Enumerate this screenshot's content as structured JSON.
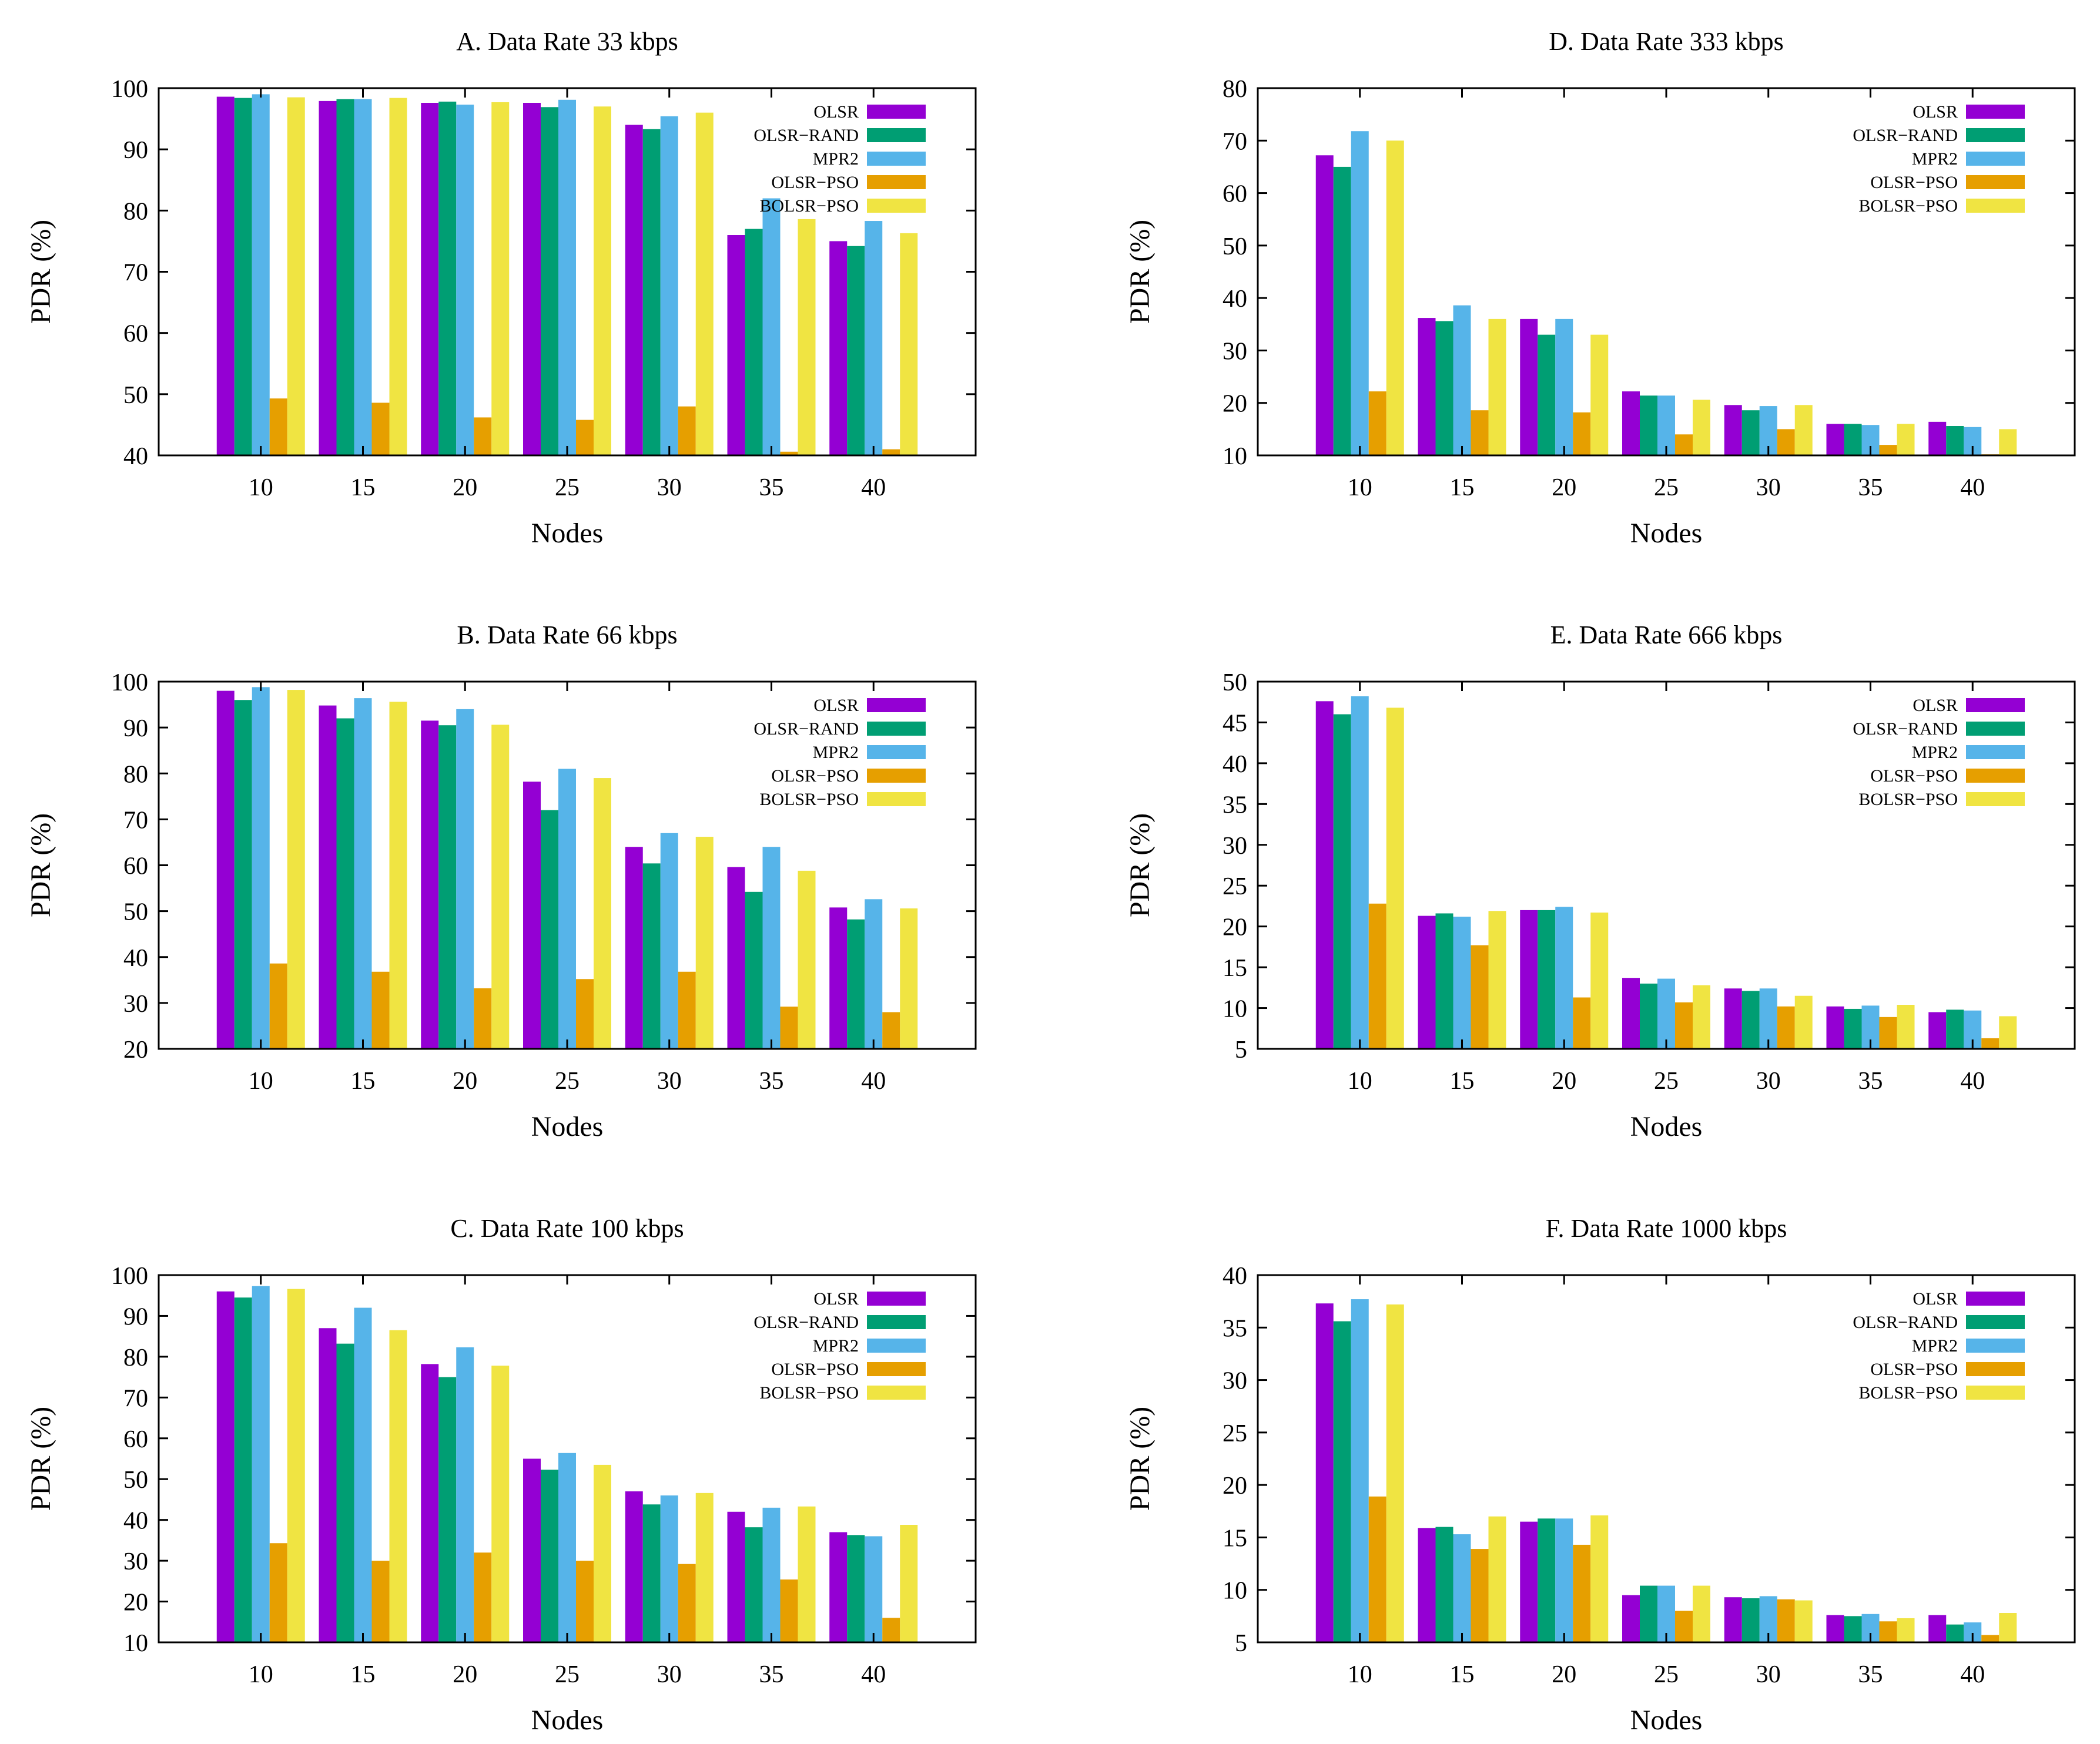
{
  "colors": {
    "OLSR": "#9400D3",
    "OLSR-RAND": "#009E73",
    "MPR2": "#56B4E9",
    "OLSR-PSO": "#E69F00",
    "BOLSR-PSO": "#F0E442"
  },
  "chart_data": [
    {
      "type": "bar",
      "title": "A. Data Rate 33 kbps",
      "xlabel": "Nodes",
      "ylabel": "PDR (%)",
      "ylim": [
        40,
        100
      ],
      "yticks": [
        40,
        50,
        60,
        70,
        80,
        90,
        100
      ],
      "categories": [
        "10",
        "15",
        "20",
        "25",
        "30",
        "35",
        "40"
      ],
      "legend": "top-right",
      "grid": false,
      "series": [
        {
          "name": "OLSR",
          "values": [
            98.6,
            97.9,
            97.6,
            97.6,
            94.0,
            76.0,
            75.0
          ]
        },
        {
          "name": "OLSR−RAND",
          "values": [
            98.4,
            98.2,
            97.8,
            96.9,
            93.3,
            77.0,
            74.2
          ]
        },
        {
          "name": "MPR2",
          "values": [
            99.0,
            98.2,
            97.3,
            98.1,
            95.4,
            82.0,
            78.3
          ]
        },
        {
          "name": "OLSR−PSO",
          "values": [
            49.3,
            48.6,
            46.2,
            45.8,
            48.0,
            40.6,
            41.0
          ]
        },
        {
          "name": "BOLSR−PSO",
          "values": [
            98.5,
            98.4,
            97.7,
            97.0,
            96.0,
            78.6,
            76.3
          ]
        }
      ]
    },
    {
      "type": "bar",
      "title": "D. Data Rate 333 kbps",
      "xlabel": "Nodes",
      "ylabel": "PDR (%)",
      "ylim": [
        10,
        80
      ],
      "yticks": [
        10,
        20,
        30,
        40,
        50,
        60,
        70,
        80
      ],
      "categories": [
        "10",
        "15",
        "20",
        "25",
        "30",
        "35",
        "40"
      ],
      "legend": "top-right",
      "grid": false,
      "series": [
        {
          "name": "OLSR",
          "values": [
            67.2,
            36.2,
            36.0,
            22.2,
            19.6,
            16.0,
            16.4
          ]
        },
        {
          "name": "OLSR−RAND",
          "values": [
            65.0,
            35.6,
            33.0,
            21.4,
            18.6,
            16.0,
            15.6
          ]
        },
        {
          "name": "MPR2",
          "values": [
            71.8,
            38.6,
            36.0,
            21.4,
            19.4,
            15.8,
            15.4
          ]
        },
        {
          "name": "OLSR−PSO",
          "values": [
            22.2,
            18.6,
            18.2,
            14.0,
            15.0,
            12.0,
            10.2
          ]
        },
        {
          "name": "BOLSR−PSO",
          "values": [
            70.0,
            36.0,
            33.0,
            20.6,
            19.6,
            16.0,
            15.0
          ]
        }
      ]
    },
    {
      "type": "bar",
      "title": "B. Data Rate 66 kbps",
      "xlabel": "Nodes",
      "ylabel": "PDR (%)",
      "ylim": [
        20,
        100
      ],
      "yticks": [
        20,
        30,
        40,
        50,
        60,
        70,
        80,
        90,
        100
      ],
      "categories": [
        "10",
        "15",
        "20",
        "25",
        "30",
        "35",
        "40"
      ],
      "legend": "top-right",
      "grid": false,
      "series": [
        {
          "name": "OLSR",
          "values": [
            98.0,
            94.8,
            91.5,
            78.2,
            64.0,
            59.6,
            50.8
          ]
        },
        {
          "name": "OLSR−RAND",
          "values": [
            96.0,
            92.0,
            90.5,
            72.0,
            60.4,
            54.2,
            48.2
          ]
        },
        {
          "name": "MPR2",
          "values": [
            98.8,
            96.4,
            94.0,
            81.0,
            67.0,
            64.0,
            52.6
          ]
        },
        {
          "name": "OLSR−PSO",
          "values": [
            38.6,
            36.8,
            33.2,
            35.2,
            36.8,
            29.2,
            28.0
          ]
        },
        {
          "name": "BOLSR−PSO",
          "values": [
            98.2,
            95.6,
            90.6,
            79.0,
            66.2,
            58.8,
            50.6
          ]
        }
      ]
    },
    {
      "type": "bar",
      "title": "E. Data Rate 666 kbps",
      "xlabel": "Nodes",
      "ylabel": "PDR (%)",
      "ylim": [
        5,
        50
      ],
      "yticks": [
        5,
        10,
        15,
        20,
        25,
        30,
        35,
        40,
        45,
        50
      ],
      "categories": [
        "10",
        "15",
        "20",
        "25",
        "30",
        "35",
        "40"
      ],
      "legend": "top-right",
      "grid": false,
      "series": [
        {
          "name": "OLSR",
          "values": [
            47.6,
            21.3,
            22.0,
            13.7,
            12.4,
            10.2,
            9.5
          ]
        },
        {
          "name": "OLSR−RAND",
          "values": [
            46.0,
            21.6,
            22.0,
            13.0,
            12.1,
            9.9,
            9.8
          ]
        },
        {
          "name": "MPR2",
          "values": [
            48.2,
            21.2,
            22.4,
            13.6,
            12.4,
            10.3,
            9.7
          ]
        },
        {
          "name": "OLSR−PSO",
          "values": [
            22.8,
            17.7,
            11.3,
            10.7,
            10.2,
            8.9,
            6.3
          ]
        },
        {
          "name": "BOLSR−PSO",
          "values": [
            46.8,
            21.9,
            21.7,
            12.8,
            11.5,
            10.4,
            9.0
          ]
        }
      ]
    },
    {
      "type": "bar",
      "title": "C. Data Rate 100 kbps",
      "xlabel": "Nodes",
      "ylabel": "PDR (%)",
      "ylim": [
        10,
        100
      ],
      "yticks": [
        10,
        20,
        30,
        40,
        50,
        60,
        70,
        80,
        90,
        100
      ],
      "categories": [
        "10",
        "15",
        "20",
        "25",
        "30",
        "35",
        "40"
      ],
      "legend": "top-right",
      "grid": false,
      "series": [
        {
          "name": "OLSR",
          "values": [
            96.0,
            87.0,
            78.2,
            55.0,
            47.0,
            42.0,
            37.0
          ]
        },
        {
          "name": "OLSR−RAND",
          "values": [
            94.5,
            83.2,
            75.0,
            52.3,
            43.8,
            38.2,
            36.3
          ]
        },
        {
          "name": "MPR2",
          "values": [
            97.3,
            92.0,
            82.3,
            56.4,
            46.0,
            43.0,
            36.0
          ]
        },
        {
          "name": "OLSR−PSO",
          "values": [
            34.3,
            30.0,
            32.0,
            30.0,
            29.2,
            25.4,
            16.0
          ]
        },
        {
          "name": "BOLSR−PSO",
          "values": [
            96.6,
            86.5,
            77.8,
            53.5,
            46.6,
            43.3,
            38.8
          ]
        }
      ]
    },
    {
      "type": "bar",
      "title": "F. Data Rate 1000 kbps",
      "xlabel": "Nodes",
      "ylabel": "PDR (%)",
      "ylim": [
        5,
        40
      ],
      "yticks": [
        5,
        10,
        15,
        20,
        25,
        30,
        35,
        40
      ],
      "categories": [
        "10",
        "15",
        "20",
        "25",
        "30",
        "35",
        "40"
      ],
      "legend": "top-right",
      "grid": false,
      "series": [
        {
          "name": "OLSR",
          "values": [
            37.3,
            15.9,
            16.5,
            9.5,
            9.3,
            7.6,
            7.6
          ]
        },
        {
          "name": "OLSR−RAND",
          "values": [
            35.6,
            16.0,
            16.8,
            10.4,
            9.2,
            7.5,
            6.7
          ]
        },
        {
          "name": "MPR2",
          "values": [
            37.7,
            15.3,
            16.8,
            10.4,
            9.4,
            7.7,
            6.9
          ]
        },
        {
          "name": "OLSR−PSO",
          "values": [
            18.9,
            13.9,
            14.3,
            8.0,
            9.1,
            7.0,
            5.7
          ]
        },
        {
          "name": "BOLSR−PSO",
          "values": [
            37.2,
            17.0,
            17.1,
            10.4,
            9.0,
            7.3,
            7.8
          ]
        }
      ]
    }
  ]
}
